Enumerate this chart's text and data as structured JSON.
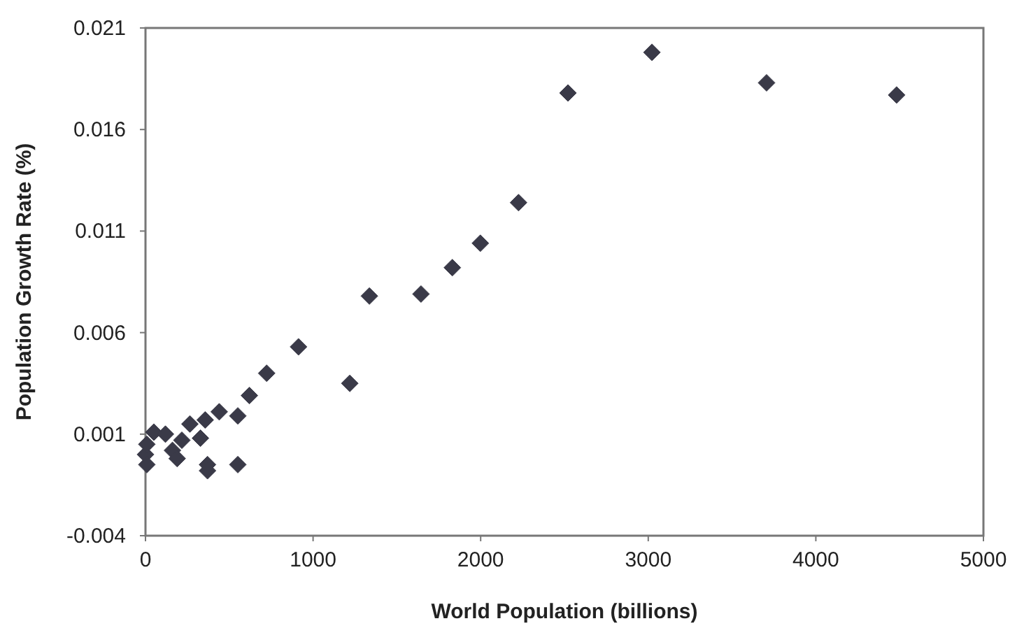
{
  "chart_data": {
    "type": "scatter",
    "xlabel": "World Population (billions)",
    "ylabel": "Population Growth Rate (%)",
    "marker": "diamond",
    "grid": false,
    "xlim": [
      0,
      5000
    ],
    "xticks": [
      0,
      1000,
      2000,
      3000,
      4000,
      5000
    ],
    "ylim": [
      -0.004,
      0.021
    ],
    "yticks": [
      -0.004,
      0.001,
      0.006,
      0.011,
      0.016,
      0.021
    ],
    "series": [
      {
        "color": "#3a3a48",
        "x": [
          0,
          8,
          8,
          50,
          119,
          161,
          189,
          217,
          265,
          328,
          356,
          370,
          370,
          440,
          551,
          551,
          620,
          723,
          913,
          1219,
          1336,
          1644,
          1831,
          1998,
          2226,
          2521,
          3022,
          3706,
          4482
        ],
        "values": [
          0,
          0.0005,
          -0.0005,
          0.0011,
          0.001,
          0.0002,
          -0.0002,
          0.0007,
          0.0015,
          0.0008,
          0.0017,
          -0.0005,
          -0.0008,
          0.0021,
          0.0019,
          -0.0005,
          0.0029,
          0.004,
          0.0053,
          0.0035,
          0.0078,
          0.0079,
          0.0092,
          0.0104,
          0.0124,
          0.0178,
          0.0198,
          0.0183,
          0.0177
        ]
      }
    ]
  }
}
